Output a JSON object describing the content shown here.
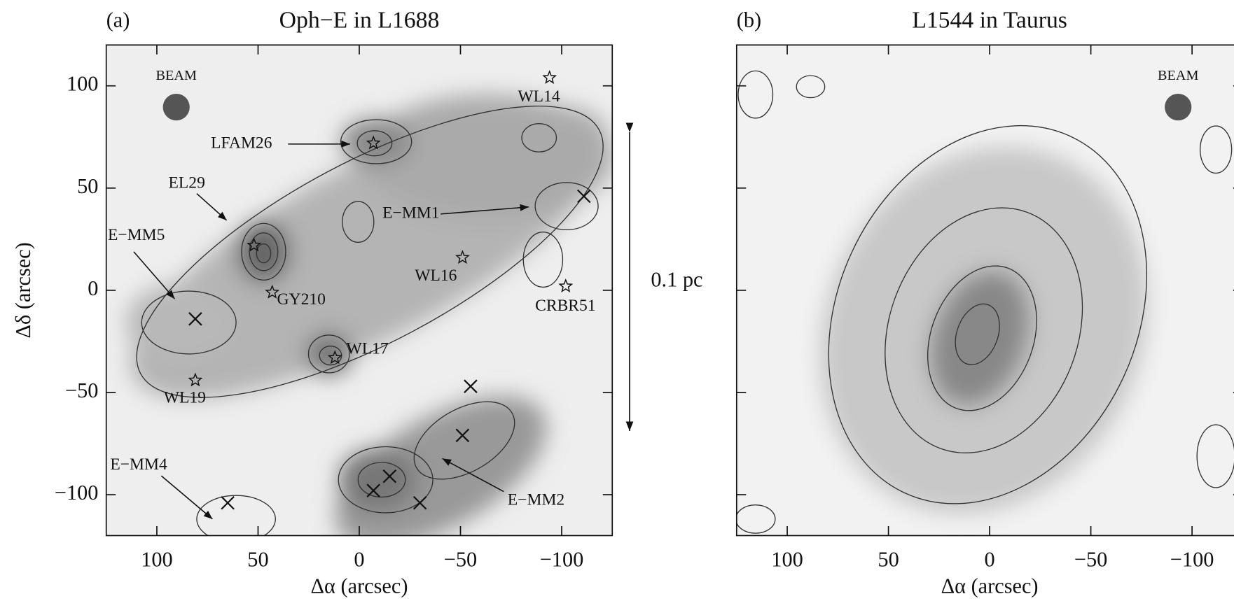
{
  "chart_data": [
    {
      "type": "scatter",
      "panel_label": "(a)",
      "title": "Oph−E in L1688",
      "x_label": "Δα (arcsec)",
      "y_label": "Δδ (arcsec)",
      "xlim": [
        125,
        -125
      ],
      "ylim": [
        -120,
        120
      ],
      "xticks": [
        100,
        50,
        0,
        {
          "value": -50,
          "label": "−50"
        },
        {
          "value": -100,
          "label": "−100"
        }
      ],
      "yticks": [
        100,
        50,
        0,
        {
          "value": -50,
          "label": "−50"
        },
        {
          "value": -100,
          "label": "−100"
        }
      ],
      "beam_label": "BEAM",
      "scale_bar_label": "0.1 pc",
      "stars": {
        "x": [
          -94,
          -7,
          52,
          43,
          -51,
          -102,
          12,
          81
        ],
        "y": [
          104,
          72,
          22,
          -1,
          16,
          2,
          -33,
          -44
        ]
      },
      "crosses": {
        "x": [
          -111,
          81,
          -55,
          -51,
          -15,
          -7,
          -30,
          65
        ],
        "y": [
          46,
          -14,
          -47,
          -71,
          -91,
          -98,
          -104,
          -104
        ]
      },
      "annotations": [
        "WL14",
        "LFAM26",
        "EL29",
        "E−MM5",
        "E−MM1",
        "WL16",
        "GY210",
        "CRBR51",
        "WL17",
        "WL19",
        "E−MM4",
        "E−MM2"
      ]
    },
    {
      "type": "scatter",
      "panel_label": "(b)",
      "title": "L1544 in Taurus",
      "x_label": "Δα (arcsec)",
      "xlim": [
        125,
        -125
      ],
      "ylim": [
        -120,
        120
      ],
      "xticks": [
        100,
        50,
        0,
        {
          "value": -50,
          "label": "−50"
        },
        {
          "value": -100,
          "label": "−100"
        }
      ],
      "yticks": [
        100,
        50,
        0,
        -50,
        -100
      ],
      "beam_label": "BEAM"
    }
  ]
}
